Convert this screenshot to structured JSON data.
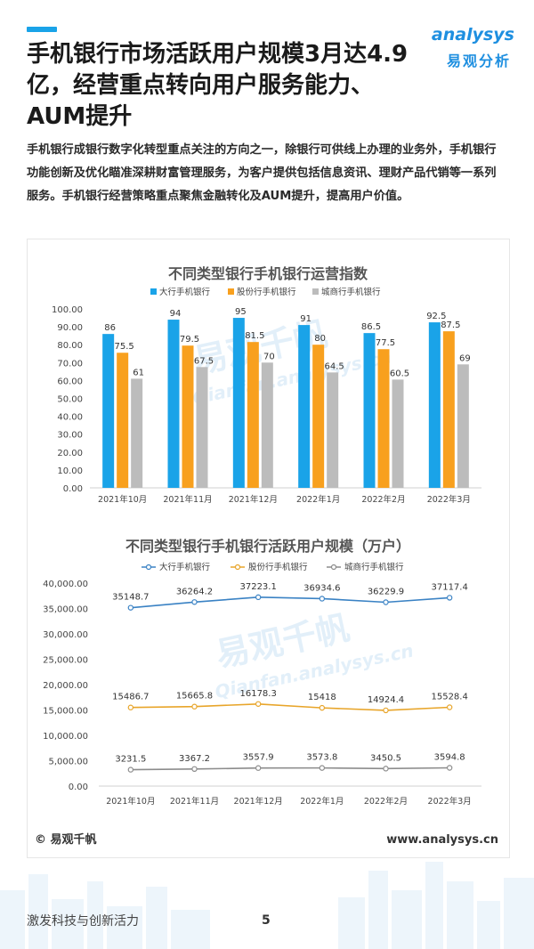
{
  "header": {
    "headline": "手机银行市场活跃用户规模3月达4.9亿，经营重点转向用户服务能力、AUM提升",
    "logo_en": "analysys",
    "logo_cn": "易观分析"
  },
  "intro": "手机银行成银行数字化转型重点关注的方向之一，除银行可供线上办理的业务外，手机银行功能创新及优化瞄准深耕财富管理服务，为客户提供包括信息资讯、理财产品代销等一系列服务。手机银行经营策略重点聚焦金融转化及AUM提升，提高用户价值。",
  "watermark": {
    "cn": "易观千帆",
    "en": "Qianfan.analysys.cn"
  },
  "footer": {
    "copyright": "© 易观千帆",
    "website": "www.analysys.cn"
  },
  "page": {
    "slogan": "激发科技与创新活力",
    "number": "5"
  },
  "colors": {
    "series1": "#1aa3e8",
    "series2": "#f8a01e",
    "series3": "#bcbcbc",
    "line1": "#3a82c4",
    "line2": "#e8a52a",
    "line3": "#8c8c8c"
  },
  "chart_data": [
    {
      "type": "bar",
      "title": "不同类型银行手机银行运营指数",
      "categories": [
        "2021年10月",
        "2021年11月",
        "2021年12月",
        "2022年1月",
        "2022年2月",
        "2022年3月"
      ],
      "series": [
        {
          "name": "大行手机银行",
          "values": [
            86,
            94,
            95,
            91,
            86.5,
            92.5
          ]
        },
        {
          "name": "股份行手机银行",
          "values": [
            75.5,
            79.5,
            81.5,
            80,
            77.5,
            87.5
          ]
        },
        {
          "name": "城商行手机银行",
          "values": [
            61,
            67.5,
            70,
            64.5,
            60.5,
            69
          ]
        }
      ],
      "yticks": [
        "0.00",
        "10.00",
        "20.00",
        "30.00",
        "40.00",
        "50.00",
        "60.00",
        "70.00",
        "80.00",
        "90.00",
        "100.00"
      ],
      "ylim": [
        0,
        100
      ],
      "legend": "top",
      "grid": false
    },
    {
      "type": "line",
      "title": "不同类型银行手机银行活跃用户规模（万户）",
      "categories": [
        "2021年10月",
        "2021年11月",
        "2021年12月",
        "2022年1月",
        "2022年2月",
        "2022年3月"
      ],
      "series": [
        {
          "name": "大行手机银行",
          "values": [
            35148.7,
            36264.2,
            37223.1,
            36934.6,
            36229.9,
            37117.4
          ]
        },
        {
          "name": "股份行手机银行",
          "values": [
            15486.7,
            15665.8,
            16178.3,
            15418,
            14924.4,
            15528.4
          ]
        },
        {
          "name": "城商行手机银行",
          "values": [
            3231.5,
            3367.2,
            3557.9,
            3573.8,
            3450.5,
            3594.8
          ]
        }
      ],
      "yticks": [
        "0.00",
        "5,000.00",
        "10,000.00",
        "15,000.00",
        "20,000.00",
        "25,000.00",
        "30,000.00",
        "35,000.00",
        "40,000.00"
      ],
      "ylim": [
        0,
        40000
      ],
      "legend": "top",
      "grid": false
    }
  ]
}
